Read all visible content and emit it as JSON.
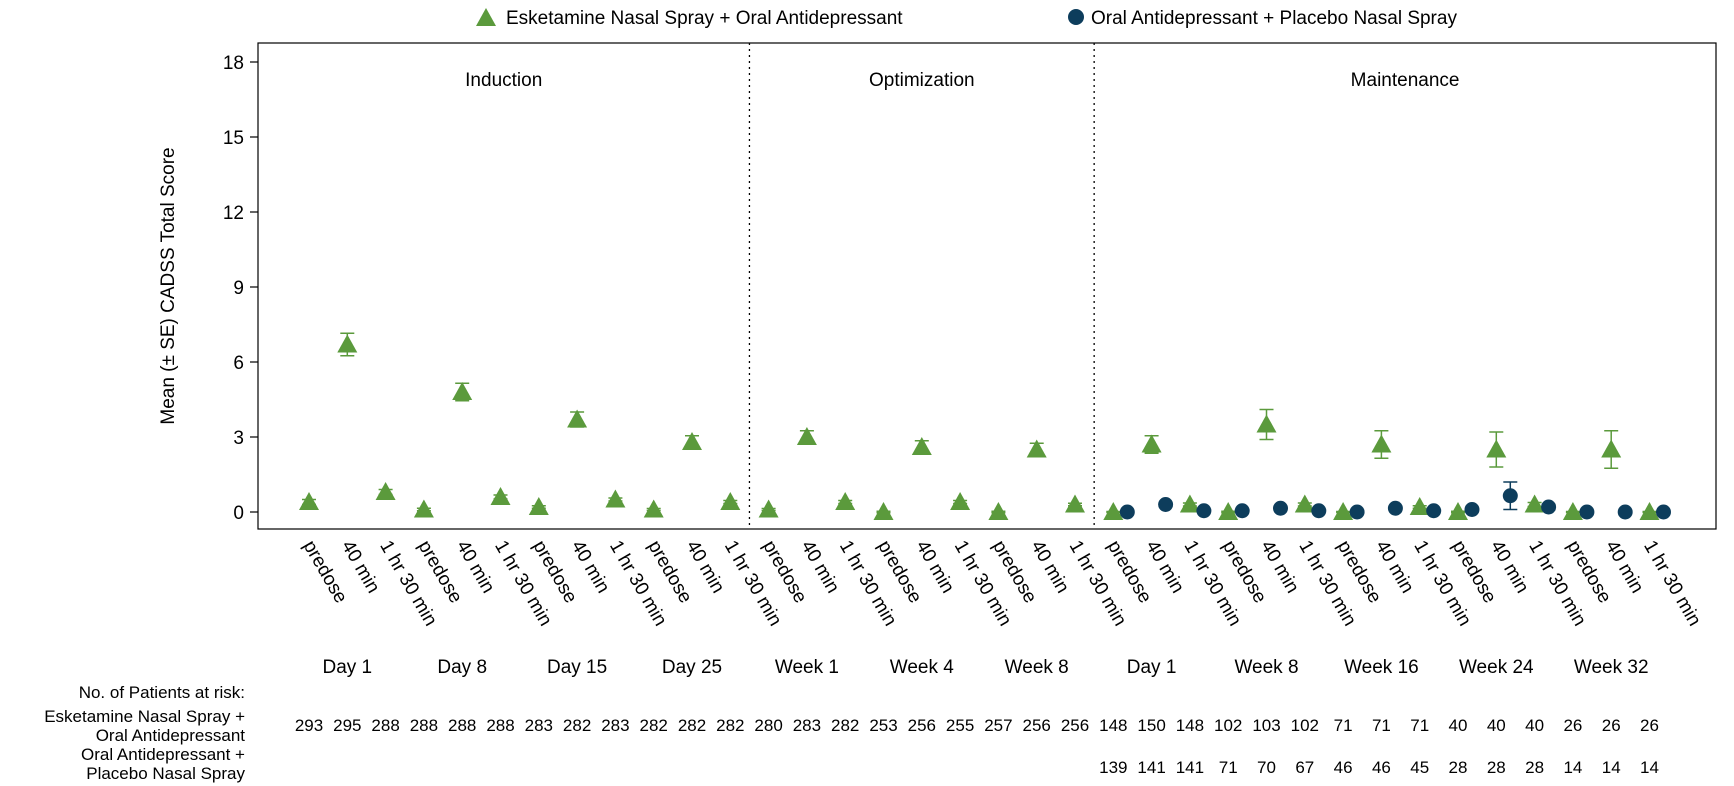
{
  "chart_data": {
    "type": "scatter",
    "title": "",
    "ylabel": "Mean (± SE) CADSS Total Score",
    "xlabel": "",
    "ylim": [
      -0.6,
      18.6
    ],
    "yticks": [
      0,
      3,
      6,
      9,
      12,
      15,
      18
    ],
    "grid": false,
    "legend_position": "top",
    "phases": [
      {
        "label": "Induction",
        "start": 0,
        "end": 11
      },
      {
        "label": "Optimization",
        "start": 12,
        "end": 20
      },
      {
        "label": "Maintenance",
        "start": 21,
        "end": 35
      }
    ],
    "visits": [
      "Day 1",
      "Day 8",
      "Day 15",
      "Day 25",
      "Week 1",
      "Week 4",
      "Week 8",
      "Day 1",
      "Week 8",
      "Week 16",
      "Week 24",
      "Week 32"
    ],
    "timepoints": [
      "predose",
      "40 min",
      "1 hr 30 min"
    ],
    "x_labels": [
      "predose",
      "40 min",
      "1 hr 30 min",
      "predose",
      "40 min",
      "1 hr 30 min",
      "predose",
      "40 min",
      "1 hr 30 min",
      "predose",
      "40 min",
      "1 hr 30 min",
      "predose",
      "40 min",
      "1 hr 30 min",
      "predose",
      "40 min",
      "1 hr 30 min",
      "predose",
      "40 min",
      "1 hr 30 min",
      "predose",
      "40 min",
      "1 hr 30 min",
      "predose",
      "40 min",
      "1 hr 30 min",
      "predose",
      "40 min",
      "1 hr 30 min",
      "predose",
      "40 min",
      "1 hr 30 min",
      "predose",
      "40 min",
      "1 hr 30 min"
    ],
    "series": [
      {
        "name": "Esketamine Nasal Spray + Oral Antidepressant",
        "marker": "triangle",
        "color": "#5b9a3c",
        "values": [
          0.4,
          6.7,
          0.8,
          0.1,
          4.8,
          0.6,
          0.2,
          3.7,
          0.5,
          0.1,
          2.8,
          0.4,
          0.1,
          3.0,
          0.4,
          0.0,
          2.6,
          0.4,
          0.0,
          2.5,
          0.3,
          0.0,
          2.7,
          0.3,
          0.0,
          3.5,
          0.3,
          0.0,
          2.7,
          0.2,
          0.0,
          2.5,
          0.3,
          0.0,
          2.5,
          0.0
        ],
        "se": [
          0.1,
          0.45,
          0.1,
          0.05,
          0.35,
          0.08,
          0.05,
          0.3,
          0.06,
          0.04,
          0.25,
          0.06,
          0.04,
          0.25,
          0.06,
          0.03,
          0.25,
          0.06,
          0.03,
          0.25,
          0.05,
          0.02,
          0.35,
          0.06,
          0.03,
          0.6,
          0.06,
          0.02,
          0.55,
          0.05,
          0.03,
          0.7,
          0.08,
          0.02,
          0.75,
          0.02
        ]
      },
      {
        "name": "Oral Antidepressant + Placebo Nasal Spray",
        "marker": "circle",
        "color": "#0d3d5c",
        "values": [
          null,
          null,
          null,
          null,
          null,
          null,
          null,
          null,
          null,
          null,
          null,
          null,
          null,
          null,
          null,
          null,
          null,
          null,
          null,
          null,
          null,
          0.0,
          0.3,
          0.05,
          0.05,
          0.15,
          0.05,
          0.0,
          0.15,
          0.05,
          0.1,
          0.65,
          0.2,
          0.0,
          0.0,
          0.0
        ],
        "se": [
          null,
          null,
          null,
          null,
          null,
          null,
          null,
          null,
          null,
          null,
          null,
          null,
          null,
          null,
          null,
          null,
          null,
          null,
          null,
          null,
          null,
          0.03,
          0.06,
          0.04,
          0.04,
          0.05,
          0.04,
          0.03,
          0.05,
          0.04,
          0.05,
          0.55,
          0.1,
          0.02,
          0.02,
          0.02
        ]
      }
    ]
  },
  "risk_table": {
    "title": "No. of Patients at risk:",
    "rows": [
      {
        "label_lines": [
          "Esketamine Nasal Spray +",
          "Oral Antidepressant"
        ],
        "values": [
          "293",
          "295",
          "288",
          "288",
          "288",
          "288",
          "283",
          "282",
          "283",
          "282",
          "282",
          "282",
          "280",
          "283",
          "282",
          "253",
          "256",
          "255",
          "257",
          "256",
          "256",
          "148",
          "150",
          "148",
          "102",
          "103",
          "102",
          "71",
          "71",
          "71",
          "40",
          "40",
          "40",
          "26",
          "26",
          "26"
        ]
      },
      {
        "label_lines": [
          "Oral Antidepressant +",
          "Placebo Nasal Spray"
        ],
        "values": [
          "",
          "",
          "",
          "",
          "",
          "",
          "",
          "",
          "",
          "",
          "",
          "",
          "",
          "",
          "",
          "",
          "",
          "",
          "",
          "",
          "",
          "139",
          "141",
          "141",
          "71",
          "70",
          "67",
          "46",
          "46",
          "45",
          "28",
          "28",
          "28",
          "14",
          "14",
          "14"
        ]
      }
    ]
  }
}
